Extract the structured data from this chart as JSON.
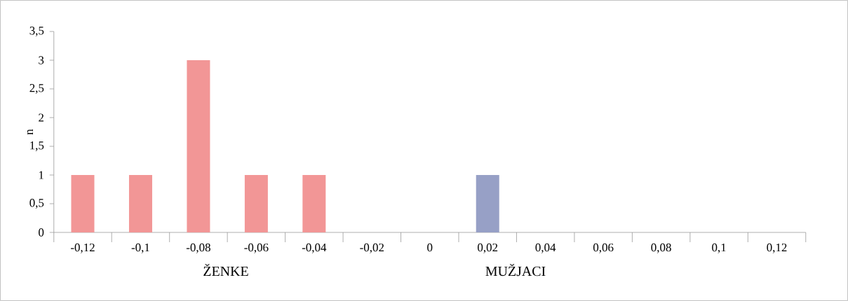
{
  "chart_data": {
    "type": "bar",
    "categories": [
      "-0,12",
      "-0,1",
      "-0,08",
      "-0,06",
      "-0,04",
      "-0,02",
      "0",
      "0,02",
      "0,04",
      "0,06",
      "0,08",
      "0,1",
      "0,12"
    ],
    "values": [
      1,
      1,
      3,
      1,
      1,
      0,
      0,
      1,
      0,
      0,
      0,
      0,
      0
    ],
    "colors": [
      "#f29696",
      "#f29696",
      "#f29696",
      "#f29696",
      "#f29696",
      "#f29696",
      "#f29696",
      "#97a0c6",
      "#97a0c6",
      "#97a0c6",
      "#97a0c6",
      "#97a0c6",
      "#97a0c6"
    ],
    "ylabel": "n",
    "ylim": [
      0,
      3.5
    ],
    "yticks": [
      0,
      {
        "value": 0.5,
        "label": "0,5"
      },
      1,
      {
        "value": 1.5,
        "label": "1,5"
      },
      2,
      {
        "value": 2.5,
        "label": "2,5"
      },
      3,
      {
        "value": 3.5,
        "label": "3,5"
      }
    ],
    "annotations": [
      "ŽENKE",
      "MUŽJACI"
    ],
    "grid": false
  }
}
